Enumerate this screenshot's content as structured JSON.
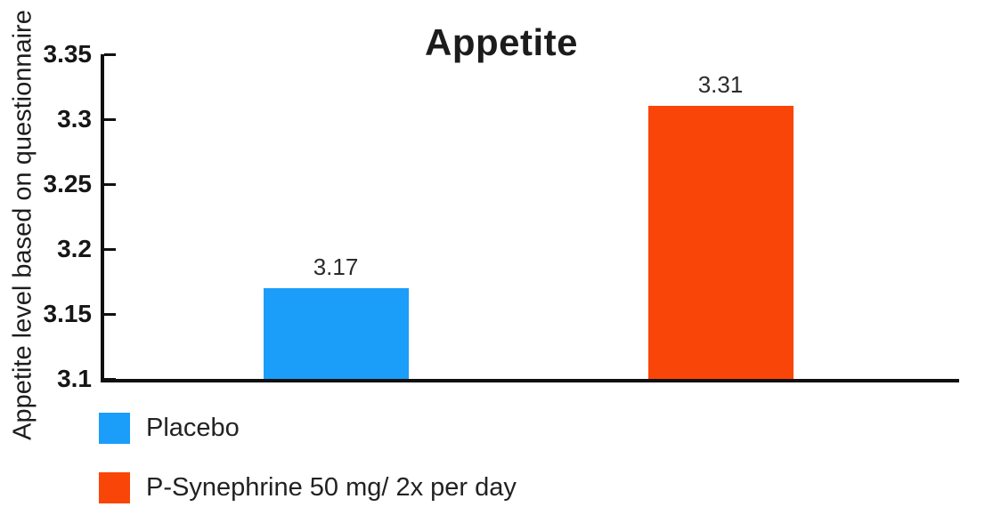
{
  "chart_data": {
    "type": "bar",
    "title": "Appetite",
    "xlabel": "",
    "ylabel": "Appetite level based on questionnaire",
    "ylim": [
      3.1,
      3.35
    ],
    "ytick_step": 0.05,
    "yticks": [
      "3.1",
      "3.15",
      "3.2",
      "3.25",
      "3.3",
      "3.35"
    ],
    "grid": false,
    "legend_position": "bottom-left",
    "axis_color": "#101010",
    "series": [
      {
        "name": "Placebo",
        "value": 3.17,
        "value_label": "3.17",
        "color": "#1B9DFA"
      },
      {
        "name": "P-Synephrine 50 mg/ 2x per day",
        "value": 3.31,
        "value_label": "3.31",
        "color": "#FA4508"
      }
    ]
  }
}
